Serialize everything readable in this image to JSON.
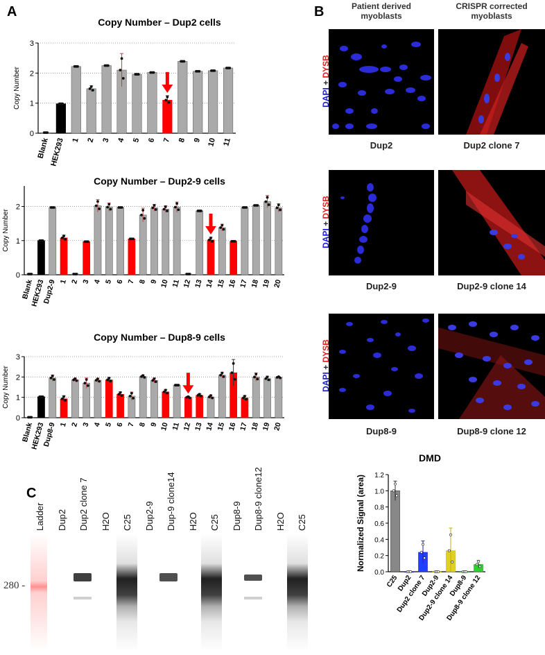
{
  "panels": {
    "A": "A",
    "B": "B",
    "C": "C"
  },
  "chart_data": [
    {
      "type": "bar",
      "title": "Copy Number – Dup2 cells",
      "ylabel": "Copy Number",
      "ylim": [
        0,
        3
      ],
      "yticks": [
        0,
        1,
        2,
        3
      ],
      "categories": [
        "Blank",
        "HEK293",
        "1",
        "2",
        "3",
        "4",
        "5",
        "6",
        "7",
        "8",
        "9",
        "10",
        "11"
      ],
      "values": [
        0.02,
        0.98,
        2.22,
        1.48,
        2.25,
        2.1,
        1.96,
        2.02,
        1.1,
        2.39,
        2.06,
        2.08,
        2.17
      ],
      "errors": [
        0,
        0,
        0,
        0.1,
        0,
        0.55,
        0,
        0,
        0.15,
        0,
        0,
        0,
        0
      ],
      "colors": [
        "#aaaaaa",
        "#000000",
        "#aaaaaa",
        "#aaaaaa",
        "#aaaaaa",
        "#aaaaaa",
        "#aaaaaa",
        "#aaaaaa",
        "#ff0000",
        "#aaaaaa",
        "#aaaaaa",
        "#aaaaaa",
        "#aaaaaa"
      ],
      "arrow_at": "7",
      "grid": "dotted"
    },
    {
      "type": "bar",
      "title": "Copy Number – Dup2-9 cells",
      "ylabel": "Copy Number",
      "ylim": [
        0,
        2.6
      ],
      "yticks": [
        0,
        1,
        2
      ],
      "categories": [
        "Blank",
        "HEK293",
        "Dup2-9",
        "1",
        "2",
        "3",
        "4",
        "5",
        "6",
        "7",
        "8",
        "9",
        "10",
        "11",
        "12",
        "13",
        "14",
        "15",
        "16",
        "17",
        "18",
        "19",
        "20"
      ],
      "values": [
        0.02,
        1.0,
        1.97,
        1.08,
        0.02,
        0.97,
        2.02,
        1.98,
        1.97,
        1.05,
        1.75,
        1.96,
        1.92,
        1.98,
        0.02,
        1.87,
        1.02,
        1.38,
        0.98,
        1.97,
        2.03,
        2.14,
        1.96
      ],
      "errors": [
        0,
        0,
        0,
        0.08,
        0,
        0,
        0.18,
        0.12,
        0,
        0,
        0.2,
        0.1,
        0.1,
        0.15,
        0,
        0,
        0.08,
        0.1,
        0,
        0,
        0,
        0.18,
        0.12
      ],
      "colors": [
        "#aaaaaa",
        "#000000",
        "#aaaaaa",
        "#ff0000",
        "#aaaaaa",
        "#ff0000",
        "#aaaaaa",
        "#aaaaaa",
        "#aaaaaa",
        "#ff0000",
        "#aaaaaa",
        "#aaaaaa",
        "#aaaaaa",
        "#aaaaaa",
        "#aaaaaa",
        "#aaaaaa",
        "#ff0000",
        "#aaaaaa",
        "#ff0000",
        "#aaaaaa",
        "#aaaaaa",
        "#aaaaaa",
        "#aaaaaa"
      ],
      "arrow_at": "14",
      "grid": "dotted"
    },
    {
      "type": "bar",
      "title": "Copy Number – Dup8-9 cells",
      "ylabel": "Copy Number",
      "ylim": [
        0,
        3
      ],
      "yticks": [
        0,
        1,
        2,
        3
      ],
      "categories": [
        "Blank",
        "HEK293",
        "Dup8-9",
        "1",
        "2",
        "3",
        "4",
        "5",
        "6",
        "7",
        "8",
        "9",
        "10",
        "11",
        "12",
        "13",
        "14",
        "15",
        "16",
        "17",
        "18",
        "19",
        "20"
      ],
      "values": [
        0.02,
        1.03,
        1.95,
        0.93,
        1.86,
        1.7,
        1.84,
        1.86,
        1.15,
        1.06,
        2.02,
        1.83,
        1.27,
        1.6,
        1.0,
        1.1,
        1.02,
        2.09,
        2.21,
        0.97,
        2.0,
        1.92,
        1.98
      ],
      "errors": [
        0,
        0,
        0.15,
        0.15,
        0.08,
        0.25,
        0.1,
        0.12,
        0.12,
        0.2,
        0.08,
        0.12,
        0.12,
        0,
        0.05,
        0.08,
        0.1,
        0.15,
        0.65,
        0.12,
        0.2,
        0.12,
        0.05
      ],
      "colors": [
        "#aaaaaa",
        "#000000",
        "#aaaaaa",
        "#ff0000",
        "#aaaaaa",
        "#aaaaaa",
        "#aaaaaa",
        "#ff0000",
        "#ff0000",
        "#aaaaaa",
        "#aaaaaa",
        "#aaaaaa",
        "#ff0000",
        "#aaaaaa",
        "#ff0000",
        "#ff0000",
        "#aaaaaa",
        "#aaaaaa",
        "#ff0000",
        "#ff0000",
        "#aaaaaa",
        "#aaaaaa",
        "#aaaaaa"
      ],
      "arrow_at": "12",
      "grid": "dotted"
    },
    {
      "type": "bar",
      "title": "DMD",
      "ylabel": "Normalized Signal (area)",
      "ylim": [
        0,
        1.2
      ],
      "yticks": [
        0.0,
        0.2,
        0.4,
        0.6,
        0.8,
        1.0,
        1.2
      ],
      "categories": [
        "C25",
        "Dup2",
        "Dup2 clone 7",
        "Dup2-9",
        "Dup2-9 clone 14",
        "Dup8-9",
        "Dup8-9 clone 12"
      ],
      "values": [
        1.0,
        0.0,
        0.24,
        0.0,
        0.26,
        0.0,
        0.09
      ],
      "errors": [
        0.12,
        0,
        0.14,
        0,
        0.28,
        0,
        0.05
      ],
      "colors": [
        "#888888",
        "#2040ff",
        "#2040ff",
        "#e0d020",
        "#e0d020",
        "#30d030",
        "#30d030"
      ],
      "edge_colors": [
        "#333333",
        "#2020c0",
        "#2020c0",
        "#c0b010",
        "#c0b010",
        "#20a020",
        "#20a020"
      ]
    }
  ],
  "microscopy": {
    "columns": [
      "Patient derived\nmyoblasts",
      "CRISPR corrected\nmyoblasts"
    ],
    "stain_label": {
      "dapi": "DAPI",
      "plus": " + ",
      "dysb": "DYSB"
    },
    "captions": [
      [
        "Dup2",
        "Dup2 clone 7"
      ],
      [
        "Dup2-9",
        "Dup2-9 clone 14"
      ],
      [
        "Dup8-9",
        "Dup8-9 clone 12"
      ]
    ]
  },
  "gel": {
    "lanes": [
      "Ladder",
      "Dup2",
      "Dup2 clone 7",
      "H2O",
      "C25",
      "Dup2-9",
      "Dup-9 clone14",
      "H2O",
      "C25",
      "Dup8-9",
      "Dup8-9 clone12",
      "H2O",
      "C25"
    ],
    "marker": "280"
  }
}
